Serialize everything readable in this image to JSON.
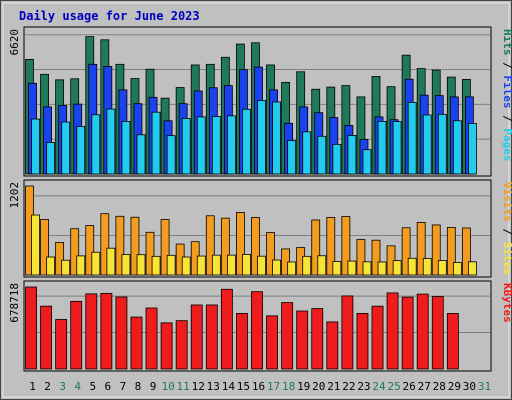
{
  "chart_data": {
    "type": "bar",
    "title": "Daily usage for June 2023",
    "categories": [
      "1",
      "2",
      "3",
      "4",
      "5",
      "6",
      "7",
      "8",
      "9",
      "10",
      "11",
      "12",
      "13",
      "14",
      "15",
      "16",
      "17",
      "18",
      "19",
      "20",
      "21",
      "22",
      "23",
      "24",
      "25",
      "26",
      "27",
      "28",
      "29",
      "30",
      "31"
    ],
    "weekend_days": [
      "3",
      "4",
      "10",
      "11",
      "17",
      "18",
      "24",
      "25",
      "31"
    ],
    "panels": [
      {
        "name": "pages-files-hits",
        "max_label": "6620",
        "ylim": [
          0,
          6620
        ],
        "right_labels": [
          "Pages",
          "Files",
          "Hits"
        ],
        "series": [
          {
            "name": "Hits",
            "color": "#1e7a5a",
            "values": [
              5380,
              4680,
              4420,
              4470,
              6450,
              6300,
              5150,
              4480,
              4920,
              3560,
              4060,
              5120,
              5150,
              5480,
              6100,
              6160,
              5120,
              4300,
              4800,
              3980,
              4080,
              4150,
              3620,
              4580,
              4100,
              5580,
              4950,
              4880,
              4550,
              4440,
              null
            ]
          },
          {
            "name": "Files",
            "color": "#1a42ee",
            "values": [
              4260,
              3150,
              3220,
              3280,
              5150,
              5050,
              3950,
              3300,
              3600,
              2500,
              3300,
              3900,
              4050,
              4150,
              4900,
              5020,
              3950,
              2380,
              3150,
              2880,
              2650,
              2280,
              1620,
              2680,
              2550,
              4450,
              3700,
              3680,
              3620,
              3620,
              null
            ]
          },
          {
            "name": "Pages",
            "color": "#22ccee",
            "values": [
              2580,
              1480,
              2440,
              2230,
              2780,
              3050,
              2470,
              1840,
              2900,
              1800,
              2610,
              2680,
              2700,
              2730,
              3040,
              3450,
              3380,
              1570,
              1980,
              1770,
              1390,
              1810,
              1140,
              2470,
              2460,
              3360,
              2770,
              2800,
              2500,
              2370,
              null
            ]
          }
        ]
      },
      {
        "name": "sites-visits",
        "max_label": "1202",
        "ylim": [
          0,
          1202
        ],
        "right_labels": [
          "Sites",
          "Visits"
        ],
        "series": [
          {
            "name": "Visits",
            "color": "#f39c1d",
            "values": [
              1202,
              750,
              440,
              625,
              667,
              828,
              793,
              780,
              577,
              750,
              418,
              450,
              800,
              768,
              845,
              778,
              573,
              352,
              370,
              743,
              778,
              790,
              480,
              470,
              394,
              638,
              710,
              676,
              642,
              635,
              null
            ]
          },
          {
            "name": "Sites",
            "color": "#f8e436",
            "values": [
              810,
              243,
              200,
              258,
              308,
              362,
              276,
              274,
              252,
              266,
              243,
              256,
              268,
              268,
              278,
              254,
              202,
              176,
              252,
              260,
              182,
              188,
              178,
              176,
              194,
              226,
              222,
              195,
              168,
              178,
              null
            ]
          }
        ]
      },
      {
        "name": "kbytes",
        "max_label": "678718",
        "ylim": [
          0,
          678718
        ],
        "right_labels": [
          "KBytes"
        ],
        "series": [
          {
            "name": "KBytes",
            "color": "#ee1c1c",
            "values": [
              678718,
              520000,
              410000,
              560000,
              622000,
              626000,
              596000,
              430000,
              505000,
              382000,
              400000,
              530000,
              530000,
              660000,
              460000,
              640000,
              440000,
              550000,
              480000,
              500000,
              390000,
              605000,
              460000,
              520000,
              630000,
              595000,
              620000,
              600000,
              460000,
              null,
              null
            ]
          }
        ]
      }
    ],
    "grid": true
  }
}
